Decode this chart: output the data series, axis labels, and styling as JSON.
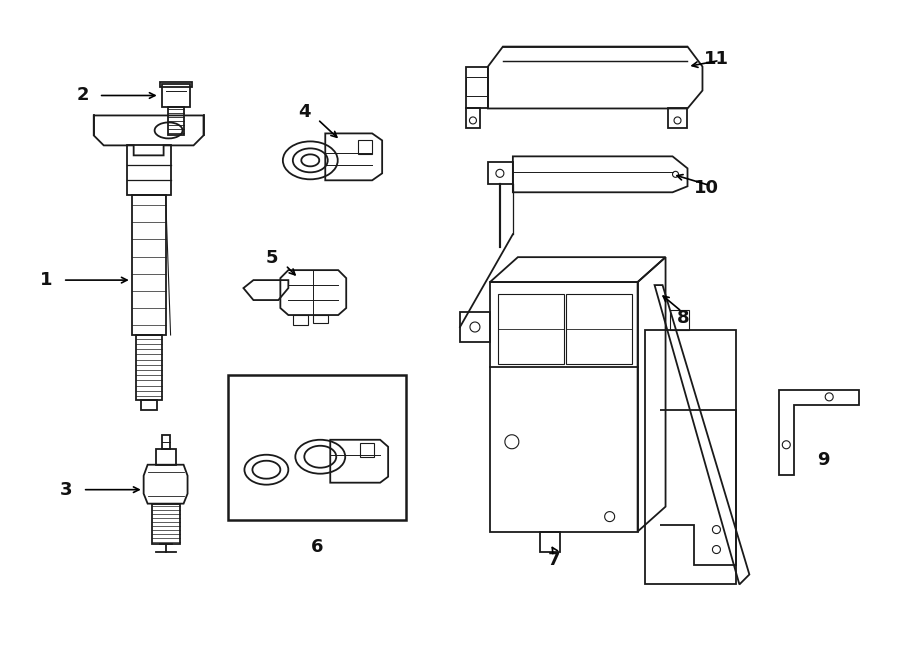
{
  "background_color": "#ffffff",
  "line_color": "#1a1a1a",
  "lw": 1.3,
  "label_fontsize": 13
}
